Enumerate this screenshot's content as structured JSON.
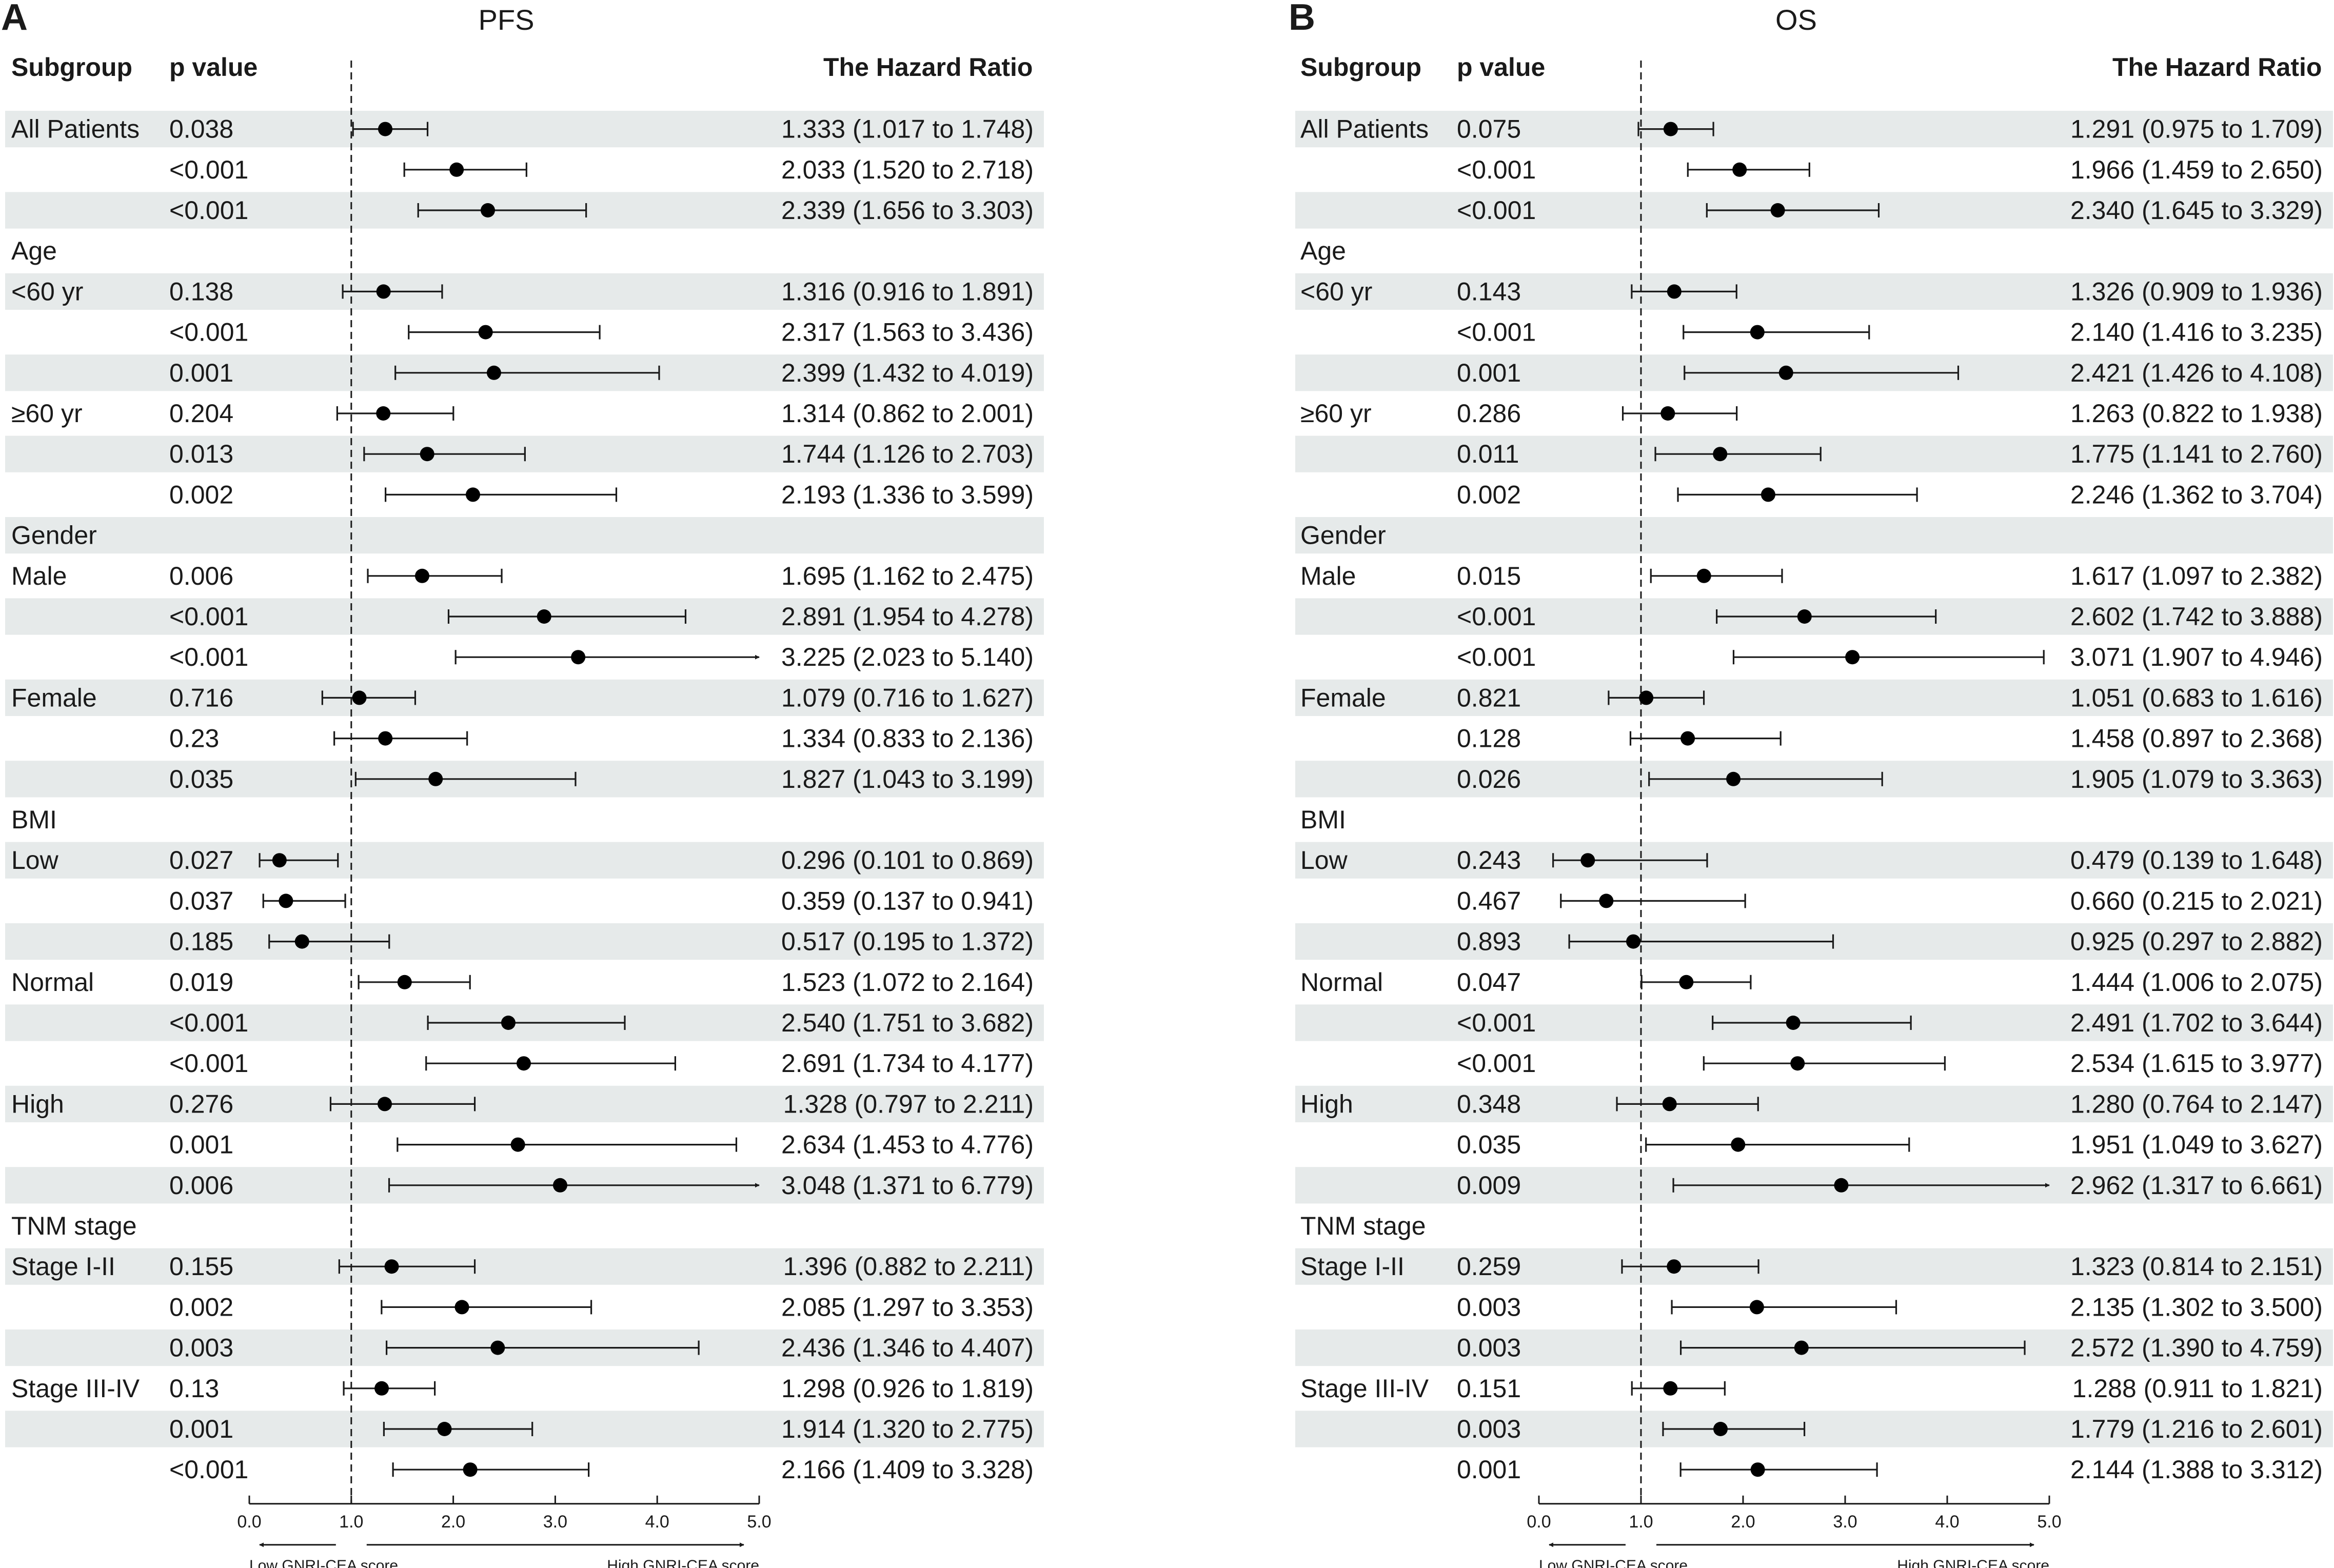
{
  "chart_data": [
    {
      "type": "forest",
      "panel_label": "A",
      "title": "PFS",
      "headers": {
        "subgroup": "Subgroup",
        "pvalue": "p value",
        "hr": "The Hazard Ratio"
      },
      "xlim": [
        0,
        5
      ],
      "ticks": [
        "0.0",
        "1.0",
        "2.0",
        "3.0",
        "4.0",
        "5.0"
      ],
      "reference_line": 1.0,
      "direction_labels": {
        "low": "Low GNRI-CEA score",
        "high": "High GNRI-CEA score"
      },
      "rows": [
        {
          "label": "All Patients",
          "p": "0.038",
          "hr": 1.333,
          "lo": 1.017,
          "hi": 1.748,
          "text": "1.333 (1.017 to 1.748)"
        },
        {
          "label": "",
          "p": "<0.001",
          "hr": 2.033,
          "lo": 1.52,
          "hi": 2.718,
          "text": "2.033 (1.520 to 2.718)"
        },
        {
          "label": "",
          "p": "<0.001",
          "hr": 2.339,
          "lo": 1.656,
          "hi": 3.303,
          "text": "2.339 (1.656 to 3.303)"
        },
        {
          "label": "Age",
          "p": "",
          "hr": null,
          "lo": null,
          "hi": null,
          "text": ""
        },
        {
          "label": "<60 yr",
          "p": "0.138",
          "hr": 1.316,
          "lo": 0.916,
          "hi": 1.891,
          "text": "1.316 (0.916 to 1.891)"
        },
        {
          "label": "",
          "p": "<0.001",
          "hr": 2.317,
          "lo": 1.563,
          "hi": 3.436,
          "text": "2.317 (1.563 to 3.436)"
        },
        {
          "label": "",
          "p": "0.001",
          "hr": 2.399,
          "lo": 1.432,
          "hi": 4.019,
          "text": "2.399 (1.432 to 4.019)"
        },
        {
          "label": "≥60 yr",
          "p": "0.204",
          "hr": 1.314,
          "lo": 0.862,
          "hi": 2.001,
          "text": "1.314 (0.862 to 2.001)"
        },
        {
          "label": "",
          "p": "0.013",
          "hr": 1.744,
          "lo": 1.126,
          "hi": 2.703,
          "text": "1.744 (1.126 to 2.703)"
        },
        {
          "label": "",
          "p": "0.002",
          "hr": 2.193,
          "lo": 1.336,
          "hi": 3.599,
          "text": "2.193 (1.336 to 3.599)"
        },
        {
          "label": "Gender",
          "p": "",
          "hr": null,
          "lo": null,
          "hi": null,
          "text": ""
        },
        {
          "label": "Male",
          "p": "0.006",
          "hr": 1.695,
          "lo": 1.162,
          "hi": 2.475,
          "text": "1.695 (1.162 to 2.475)"
        },
        {
          "label": "",
          "p": "<0.001",
          "hr": 2.891,
          "lo": 1.954,
          "hi": 4.278,
          "text": "2.891 (1.954 to 4.278)"
        },
        {
          "label": "",
          "p": "<0.001",
          "hr": 3.225,
          "lo": 2.023,
          "hi": 5.14,
          "text": "3.225 (2.023 to 5.140)"
        },
        {
          "label": "Female",
          "p": "0.716",
          "hr": 1.079,
          "lo": 0.716,
          "hi": 1.627,
          "text": "1.079 (0.716 to 1.627)"
        },
        {
          "label": "",
          "p": "0.23",
          "hr": 1.334,
          "lo": 0.833,
          "hi": 2.136,
          "text": "1.334 (0.833 to 2.136)"
        },
        {
          "label": "",
          "p": "0.035",
          "hr": 1.827,
          "lo": 1.043,
          "hi": 3.199,
          "text": "1.827 (1.043 to 3.199)"
        },
        {
          "label": "BMI",
          "p": "",
          "hr": null,
          "lo": null,
          "hi": null,
          "text": ""
        },
        {
          "label": "Low",
          "p": "0.027",
          "hr": 0.296,
          "lo": 0.101,
          "hi": 0.869,
          "text": "0.296 (0.101 to 0.869)"
        },
        {
          "label": "",
          "p": "0.037",
          "hr": 0.359,
          "lo": 0.137,
          "hi": 0.941,
          "text": "0.359 (0.137 to 0.941)"
        },
        {
          "label": "",
          "p": "0.185",
          "hr": 0.517,
          "lo": 0.195,
          "hi": 1.372,
          "text": "0.517 (0.195 to 1.372)"
        },
        {
          "label": "Normal",
          "p": "0.019",
          "hr": 1.523,
          "lo": 1.072,
          "hi": 2.164,
          "text": "1.523 (1.072 to 2.164)"
        },
        {
          "label": "",
          "p": "<0.001",
          "hr": 2.54,
          "lo": 1.751,
          "hi": 3.682,
          "text": "2.540 (1.751 to 3.682)"
        },
        {
          "label": "",
          "p": "<0.001",
          "hr": 2.691,
          "lo": 1.734,
          "hi": 4.177,
          "text": "2.691 (1.734 to 4.177)"
        },
        {
          "label": "High",
          "p": "0.276",
          "hr": 1.328,
          "lo": 0.797,
          "hi": 2.211,
          "text": "1.328 (0.797 to 2.211)"
        },
        {
          "label": "",
          "p": "0.001",
          "hr": 2.634,
          "lo": 1.453,
          "hi": 4.776,
          "text": "2.634 (1.453 to 4.776)"
        },
        {
          "label": "",
          "p": "0.006",
          "hr": 3.048,
          "lo": 1.371,
          "hi": 6.779,
          "text": "3.048 (1.371 to 6.779)"
        },
        {
          "label": "TNM stage",
          "p": "",
          "hr": null,
          "lo": null,
          "hi": null,
          "text": ""
        },
        {
          "label": "Stage I-II",
          "p": "0.155",
          "hr": 1.396,
          "lo": 0.882,
          "hi": 2.211,
          "text": "1.396 (0.882 to 2.211)"
        },
        {
          "label": "",
          "p": "0.002",
          "hr": 2.085,
          "lo": 1.297,
          "hi": 3.353,
          "text": "2.085 (1.297 to 3.353)"
        },
        {
          "label": "",
          "p": "0.003",
          "hr": 2.436,
          "lo": 1.346,
          "hi": 4.407,
          "text": "2.436 (1.346 to 4.407)"
        },
        {
          "label": "Stage III-IV",
          "p": "0.13",
          "hr": 1.298,
          "lo": 0.926,
          "hi": 1.819,
          "text": "1.298 (0.926 to 1.819)"
        },
        {
          "label": "",
          "p": "0.001",
          "hr": 1.914,
          "lo": 1.32,
          "hi": 2.775,
          "text": "1.914 (1.320 to 2.775)"
        },
        {
          "label": "",
          "p": "<0.001",
          "hr": 2.166,
          "lo": 1.409,
          "hi": 3.328,
          "text": "2.166 (1.409 to 3.328)"
        }
      ]
    },
    {
      "type": "forest",
      "panel_label": "B",
      "title": "OS",
      "headers": {
        "subgroup": "Subgroup",
        "pvalue": "p value",
        "hr": "The Hazard Ratio"
      },
      "xlim": [
        0,
        5
      ],
      "ticks": [
        "0.0",
        "1.0",
        "2.0",
        "3.0",
        "4.0",
        "5.0"
      ],
      "reference_line": 1.0,
      "direction_labels": {
        "low": "Low GNRI-CEA score",
        "high": "High GNRI-CEA score"
      },
      "rows": [
        {
          "label": "All Patients",
          "p": "0.075",
          "hr": 1.291,
          "lo": 0.975,
          "hi": 1.709,
          "text": "1.291 (0.975 to 1.709)"
        },
        {
          "label": "",
          "p": "<0.001",
          "hr": 1.966,
          "lo": 1.459,
          "hi": 2.65,
          "text": "1.966 (1.459 to 2.650)"
        },
        {
          "label": "",
          "p": "<0.001",
          "hr": 2.34,
          "lo": 1.645,
          "hi": 3.329,
          "text": "2.340 (1.645 to 3.329)"
        },
        {
          "label": "Age",
          "p": "",
          "hr": null,
          "lo": null,
          "hi": null,
          "text": ""
        },
        {
          "label": "<60 yr",
          "p": "0.143",
          "hr": 1.326,
          "lo": 0.909,
          "hi": 1.936,
          "text": "1.326 (0.909 to 1.936)"
        },
        {
          "label": "",
          "p": "<0.001",
          "hr": 2.14,
          "lo": 1.416,
          "hi": 3.235,
          "text": "2.140 (1.416 to 3.235)"
        },
        {
          "label": "",
          "p": "0.001",
          "hr": 2.421,
          "lo": 1.426,
          "hi": 4.108,
          "text": "2.421 (1.426 to 4.108)"
        },
        {
          "label": "≥60 yr",
          "p": "0.286",
          "hr": 1.263,
          "lo": 0.822,
          "hi": 1.938,
          "text": "1.263 (0.822 to 1.938)"
        },
        {
          "label": "",
          "p": "0.011",
          "hr": 1.775,
          "lo": 1.141,
          "hi": 2.76,
          "text": "1.775 (1.141 to 2.760)"
        },
        {
          "label": "",
          "p": "0.002",
          "hr": 2.246,
          "lo": 1.362,
          "hi": 3.704,
          "text": "2.246 (1.362 to 3.704)"
        },
        {
          "label": "Gender",
          "p": "",
          "hr": null,
          "lo": null,
          "hi": null,
          "text": ""
        },
        {
          "label": "Male",
          "p": "0.015",
          "hr": 1.617,
          "lo": 1.097,
          "hi": 2.382,
          "text": "1.617 (1.097 to 2.382)"
        },
        {
          "label": "",
          "p": "<0.001",
          "hr": 2.602,
          "lo": 1.742,
          "hi": 3.888,
          "text": "2.602 (1.742 to 3.888)"
        },
        {
          "label": "",
          "p": "<0.001",
          "hr": 3.071,
          "lo": 1.907,
          "hi": 4.946,
          "text": "3.071 (1.907 to 4.946)"
        },
        {
          "label": "Female",
          "p": "0.821",
          "hr": 1.051,
          "lo": 0.683,
          "hi": 1.616,
          "text": "1.051 (0.683 to 1.616)"
        },
        {
          "label": "",
          "p": "0.128",
          "hr": 1.458,
          "lo": 0.897,
          "hi": 2.368,
          "text": "1.458 (0.897 to 2.368)"
        },
        {
          "label": "",
          "p": "0.026",
          "hr": 1.905,
          "lo": 1.079,
          "hi": 3.363,
          "text": "1.905 (1.079 to 3.363)"
        },
        {
          "label": "BMI",
          "p": "",
          "hr": null,
          "lo": null,
          "hi": null,
          "text": ""
        },
        {
          "label": "Low",
          "p": "0.243",
          "hr": 0.479,
          "lo": 0.139,
          "hi": 1.648,
          "text": "0.479 (0.139 to 1.648)"
        },
        {
          "label": "",
          "p": "0.467",
          "hr": 0.66,
          "lo": 0.215,
          "hi": 2.021,
          "text": "0.660 (0.215 to 2.021)"
        },
        {
          "label": "",
          "p": "0.893",
          "hr": 0.925,
          "lo": 0.297,
          "hi": 2.882,
          "text": "0.925 (0.297 to 2.882)"
        },
        {
          "label": "Normal",
          "p": "0.047",
          "hr": 1.444,
          "lo": 1.006,
          "hi": 2.075,
          "text": "1.444 (1.006 to 2.075)"
        },
        {
          "label": "",
          "p": "<0.001",
          "hr": 2.491,
          "lo": 1.702,
          "hi": 3.644,
          "text": "2.491 (1.702 to 3.644)"
        },
        {
          "label": "",
          "p": "<0.001",
          "hr": 2.534,
          "lo": 1.615,
          "hi": 3.977,
          "text": "2.534 (1.615 to 3.977)"
        },
        {
          "label": "High",
          "p": "0.348",
          "hr": 1.28,
          "lo": 0.764,
          "hi": 2.147,
          "text": "1.280 (0.764 to 2.147)"
        },
        {
          "label": "",
          "p": "0.035",
          "hr": 1.951,
          "lo": 1.049,
          "hi": 3.627,
          "text": "1.951 (1.049 to 3.627)"
        },
        {
          "label": "",
          "p": "0.009",
          "hr": 2.962,
          "lo": 1.317,
          "hi": 6.661,
          "text": "2.962 (1.317 to 6.661)"
        },
        {
          "label": "TNM stage",
          "p": "",
          "hr": null,
          "lo": null,
          "hi": null,
          "text": ""
        },
        {
          "label": "Stage I-II",
          "p": "0.259",
          "hr": 1.323,
          "lo": 0.814,
          "hi": 2.151,
          "text": "1.323 (0.814 to 2.151)"
        },
        {
          "label": "",
          "p": "0.003",
          "hr": 2.135,
          "lo": 1.302,
          "hi": 3.5,
          "text": "2.135 (1.302 to 3.500)"
        },
        {
          "label": "",
          "p": "0.003",
          "hr": 2.572,
          "lo": 1.39,
          "hi": 4.759,
          "text": "2.572 (1.390 to 4.759)"
        },
        {
          "label": "Stage III-IV",
          "p": "0.151",
          "hr": 1.288,
          "lo": 0.911,
          "hi": 1.821,
          "text": "1.288 (0.911 to 1.821)"
        },
        {
          "label": "",
          "p": "0.003",
          "hr": 1.779,
          "lo": 1.216,
          "hi": 2.601,
          "text": "1.779 (1.216 to 2.601)"
        },
        {
          "label": "",
          "p": "0.001",
          "hr": 2.144,
          "lo": 1.388,
          "hi": 3.312,
          "text": "2.144 (1.388 to 3.312)"
        }
      ]
    }
  ],
  "colors": {
    "band": "#e6eaea",
    "ink": "#1a1a1a",
    "point": "#000000"
  }
}
